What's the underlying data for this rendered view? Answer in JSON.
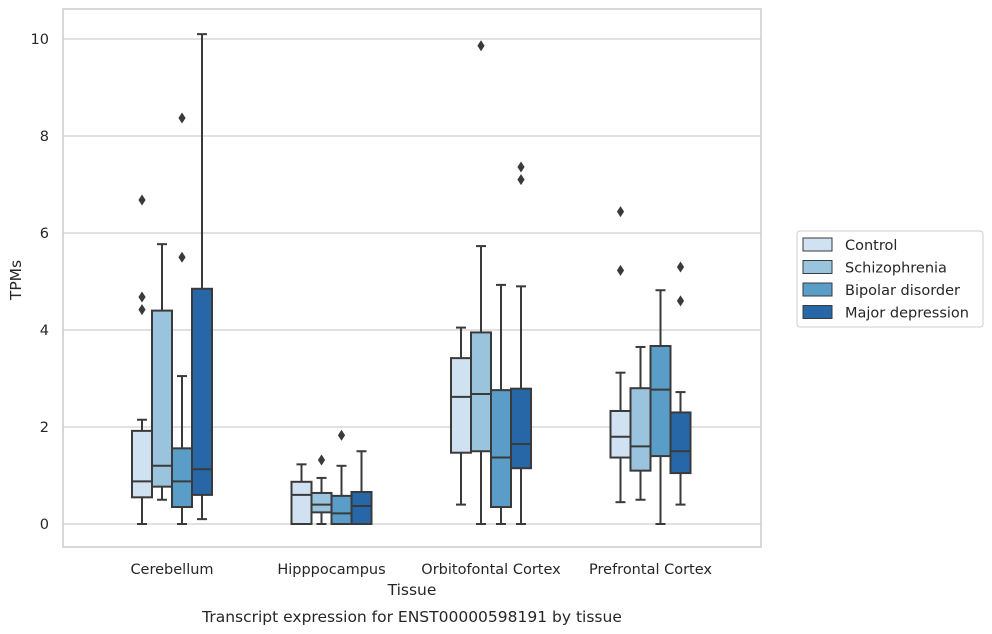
{
  "chart_data": {
    "type": "boxplot",
    "caption": "Transcript expression for ENST00000598191 by tissue",
    "xlabel": "Tissue",
    "ylabel": "TPMs",
    "ylim": [
      -0.5,
      10.6
    ],
    "yticks": [
      0,
      2,
      4,
      6,
      8,
      10
    ],
    "grid": true,
    "legend_position": "right",
    "categories": [
      "Cerebellum",
      "Hipppocampus",
      "Orbitofontal Cortex",
      "Prefrontal Cortex"
    ],
    "series": [
      {
        "name": "Control",
        "color": "#d0e1f2",
        "boxes": [
          {
            "whislo": 0,
            "q1": 0.55,
            "med": 0.88,
            "q3": 1.92,
            "whishi": 2.15,
            "fliers": [
              4.42,
              4.68,
              6.68
            ]
          },
          {
            "whislo": 0,
            "q1": 0,
            "med": 0.6,
            "q3": 0.87,
            "whishi": 1.23,
            "fliers": []
          },
          {
            "whislo": 0.4,
            "q1": 1.47,
            "med": 2.62,
            "q3": 3.42,
            "whishi": 4.05,
            "fliers": []
          },
          {
            "whislo": 0.45,
            "q1": 1.37,
            "med": 1.8,
            "q3": 2.33,
            "whishi": 3.12,
            "fliers": [
              5.23,
              6.44
            ]
          }
        ]
      },
      {
        "name": "Schizophrenia",
        "color": "#9ac3dd",
        "boxes": [
          {
            "whislo": 0.5,
            "q1": 0.77,
            "med": 1.2,
            "q3": 4.4,
            "whishi": 5.77,
            "fliers": []
          },
          {
            "whislo": 0,
            "q1": 0.24,
            "med": 0.4,
            "q3": 0.64,
            "whishi": 0.95,
            "fliers": [
              1.32
            ]
          },
          {
            "whislo": 0,
            "q1": 1.5,
            "med": 2.68,
            "q3": 3.95,
            "whishi": 5.73,
            "fliers": [
              9.86
            ]
          },
          {
            "whislo": 0.5,
            "q1": 1.1,
            "med": 1.6,
            "q3": 2.8,
            "whishi": 3.65,
            "fliers": []
          }
        ]
      },
      {
        "name": "Bipolar disorder",
        "color": "#5b9dc9",
        "boxes": [
          {
            "whislo": 0,
            "q1": 0.35,
            "med": 0.88,
            "q3": 1.56,
            "whishi": 3.05,
            "fliers": [
              5.5,
              8.37
            ]
          },
          {
            "whislo": 0,
            "q1": 0,
            "med": 0.22,
            "q3": 0.58,
            "whishi": 1.2,
            "fliers": [
              1.83
            ]
          },
          {
            "whislo": 0,
            "q1": 0.35,
            "med": 1.37,
            "q3": 2.76,
            "whishi": 4.93,
            "fliers": []
          },
          {
            "whislo": 0,
            "q1": 1.4,
            "med": 2.77,
            "q3": 3.67,
            "whishi": 4.82,
            "fliers": []
          }
        ]
      },
      {
        "name": "Major depression",
        "color": "#2767a8",
        "boxes": [
          {
            "whislo": 0.1,
            "q1": 0.6,
            "med": 1.13,
            "q3": 4.85,
            "whishi": 10.1,
            "fliers": []
          },
          {
            "whislo": 0,
            "q1": 0,
            "med": 0.37,
            "q3": 0.66,
            "whishi": 1.5,
            "fliers": []
          },
          {
            "whislo": 0,
            "q1": 1.15,
            "med": 1.65,
            "q3": 2.79,
            "whishi": 4.9,
            "fliers": [
              7.1,
              7.36
            ]
          },
          {
            "whislo": 0.4,
            "q1": 1.05,
            "med": 1.5,
            "q3": 2.3,
            "whishi": 2.72,
            "fliers": [
              4.6,
              5.3
            ]
          }
        ]
      }
    ]
  },
  "colors": {
    "line": "#3a3a3a",
    "grid": "#cfcfcf",
    "frame": "#cccccc",
    "legend_border": "#cccccc"
  }
}
